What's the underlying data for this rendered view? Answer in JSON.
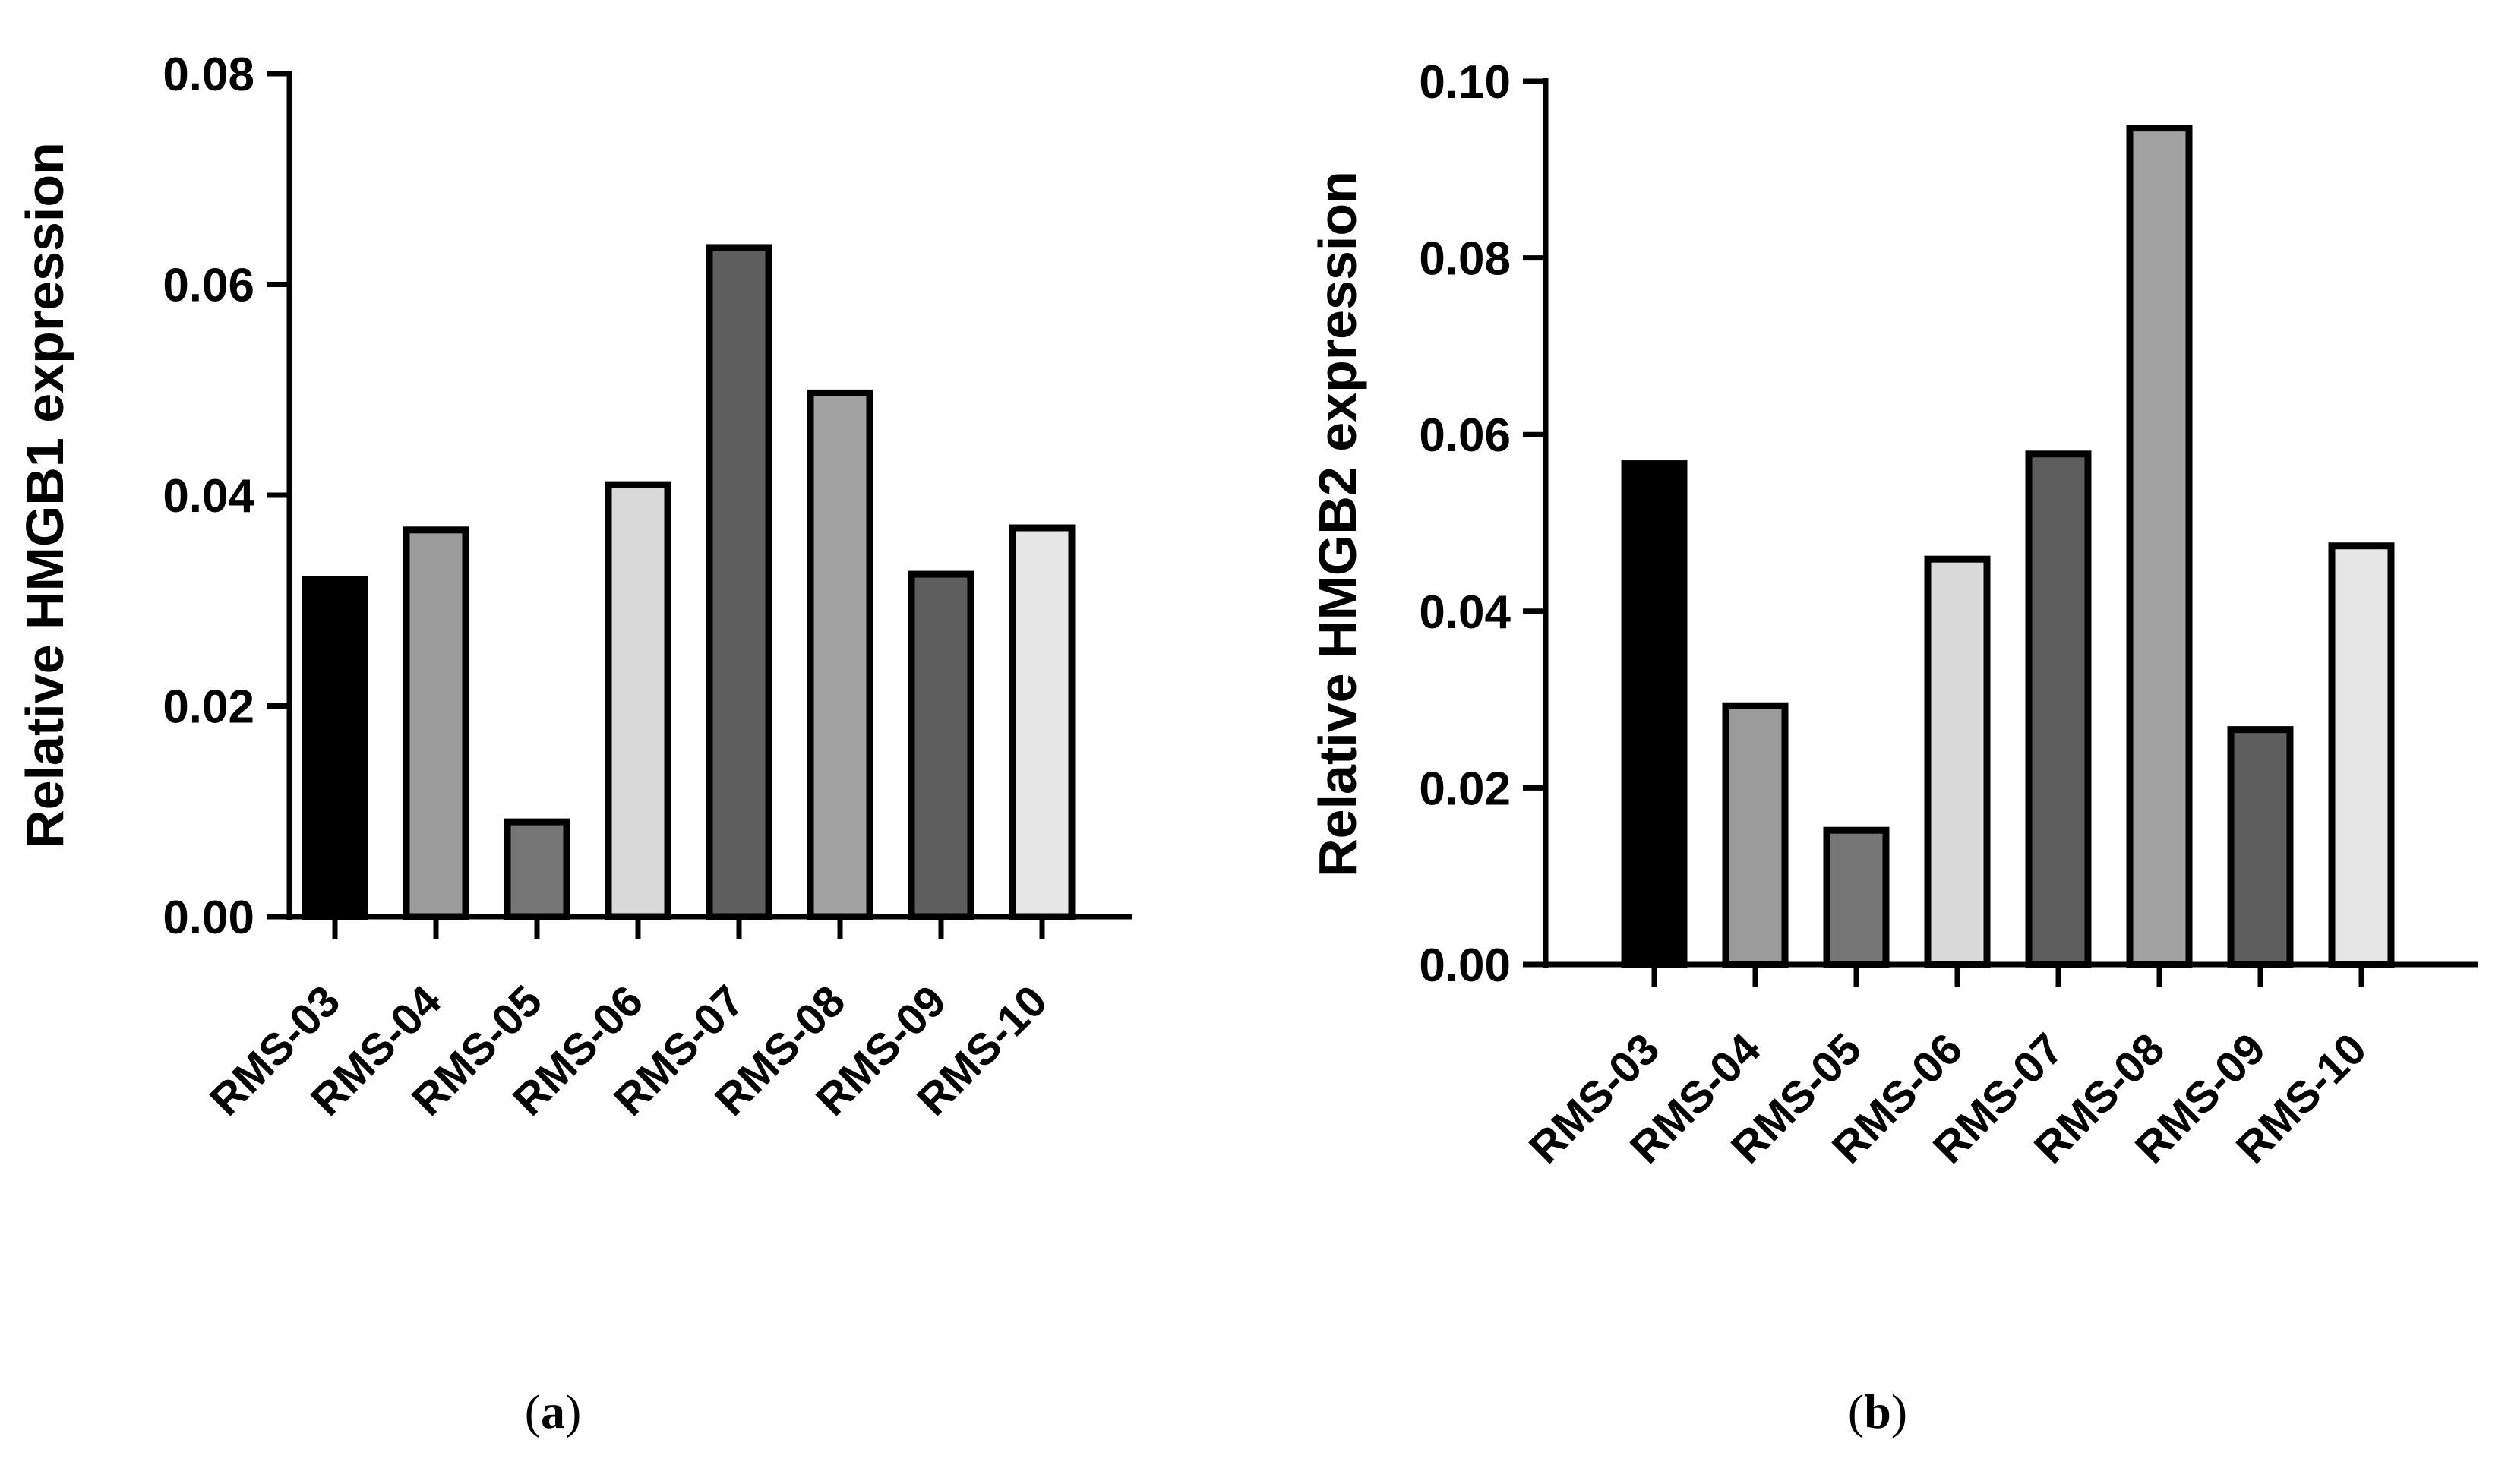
{
  "chart_data": [
    {
      "type": "bar",
      "panel_label": "a",
      "categories": [
        "RMS-03",
        "RMS-04",
        "RMS-05",
        "RMS-06",
        "RMS-07",
        "RMS-08",
        "RMS-09",
        "RMS-10"
      ],
      "values": [
        0.032,
        0.0367,
        0.009,
        0.041,
        0.0635,
        0.0497,
        0.0325,
        0.0369
      ],
      "bar_colors": [
        "#000000",
        "#9b9b9b",
        "#767676",
        "#d9d9d9",
        "#5e5e5e",
        "#a2a2a2",
        "#5e5e5e",
        "#e6e6e6"
      ],
      "title": "",
      "xlabel": "",
      "ylabel": "Relative HMGB1 expression",
      "ylim": [
        0,
        0.08
      ],
      "yticks": [
        "0.00",
        "0.02",
        "0.04",
        "0.06",
        "0.08"
      ],
      "ytick_values": [
        0,
        0.02,
        0.04,
        0.06,
        0.08
      ],
      "grid": false,
      "legend": "none"
    },
    {
      "type": "bar",
      "panel_label": "b",
      "categories": [
        "RMS-03",
        "RMS-04",
        "RMS-05",
        "RMS-06",
        "RMS-07",
        "RMS-08",
        "RMS-09",
        "RMS-10"
      ],
      "values": [
        0.0567,
        0.0293,
        0.0152,
        0.0459,
        0.0578,
        0.0947,
        0.0266,
        0.0474
      ],
      "bar_colors": [
        "#000000",
        "#9b9b9b",
        "#767676",
        "#d9d9d9",
        "#5e5e5e",
        "#a2a2a2",
        "#5e5e5e",
        "#e6e6e6"
      ],
      "title": "",
      "xlabel": "",
      "ylabel": "Relative HMGB2 expression",
      "ylim": [
        0,
        0.1
      ],
      "yticks": [
        "0.00",
        "0.02",
        "0.04",
        "0.06",
        "0.08",
        "0.10"
      ],
      "ytick_values": [
        0,
        0.02,
        0.04,
        0.06,
        0.08,
        0.1
      ],
      "grid": false,
      "legend": "none"
    }
  ]
}
